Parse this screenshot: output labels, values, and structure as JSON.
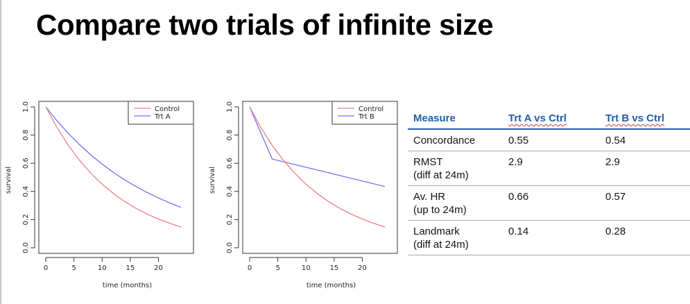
{
  "title": "Compare two trials of infinite size",
  "chart_data": [
    {
      "type": "line",
      "xlabel": "time (months)",
      "ylabel": "survival",
      "xlim": [
        0,
        24
      ],
      "ylim": [
        0,
        1
      ],
      "x_ticks": [
        "0",
        "5",
        "10",
        "15",
        "20"
      ],
      "y_ticks": [
        "0.0",
        "0.2",
        "0.4",
        "0.6",
        "0.8",
        "1.0"
      ],
      "legend_position": "top-right",
      "series": [
        {
          "name": "Control",
          "color": "#f08080",
          "x": [
            0,
            2,
            4,
            6,
            8,
            10,
            12,
            14,
            16,
            18,
            20,
            22,
            24
          ],
          "y": [
            1.0,
            0.853,
            0.727,
            0.62,
            0.529,
            0.451,
            0.385,
            0.328,
            0.28,
            0.239,
            0.204,
            0.174,
            0.148
          ]
        },
        {
          "name": "Trt A",
          "color": "#7070f0",
          "x": [
            0,
            2,
            4,
            6,
            8,
            10,
            12,
            14,
            16,
            18,
            20,
            22,
            24
          ],
          "y": [
            1.0,
            0.901,
            0.812,
            0.732,
            0.659,
            0.594,
            0.535,
            0.482,
            0.435,
            0.392,
            0.353,
            0.318,
            0.287
          ]
        }
      ]
    },
    {
      "type": "line",
      "xlabel": "time (months)",
      "ylabel": "survival",
      "xlim": [
        0,
        24
      ],
      "ylim": [
        0,
        1
      ],
      "x_ticks": [
        "0",
        "5",
        "10",
        "15",
        "20"
      ],
      "y_ticks": [
        "0.0",
        "0.2",
        "0.4",
        "0.6",
        "0.8",
        "1.0"
      ],
      "legend_position": "top-right",
      "series": [
        {
          "name": "Control",
          "color": "#f08080",
          "x": [
            0,
            2,
            4,
            6,
            8,
            10,
            12,
            14,
            16,
            18,
            20,
            22,
            24
          ],
          "y": [
            1.0,
            0.853,
            0.727,
            0.62,
            0.529,
            0.451,
            0.385,
            0.328,
            0.28,
            0.239,
            0.204,
            0.174,
            0.148
          ]
        },
        {
          "name": "Trt B",
          "color": "#7070f0",
          "x": [
            0,
            4,
            24
          ],
          "y": [
            1.0,
            0.63,
            0.435
          ]
        }
      ]
    }
  ],
  "table": {
    "headers": [
      "Measure",
      "Trt A vs Ctrl",
      "Trt B vs Ctrl"
    ],
    "rows": [
      {
        "measure": "Concordance",
        "sub": "",
        "a": "0.55",
        "b": "0.54"
      },
      {
        "measure": "RMST",
        "sub": "(diff at 24m)",
        "a": "2.9",
        "b": "2.9"
      },
      {
        "measure": "Av. HR",
        "sub": "(up to 24m)",
        "a": "0.66",
        "b": "0.57"
      },
      {
        "measure": "Landmark",
        "sub": "(diff at 24m)",
        "a": "0.14",
        "b": "0.28"
      }
    ]
  }
}
